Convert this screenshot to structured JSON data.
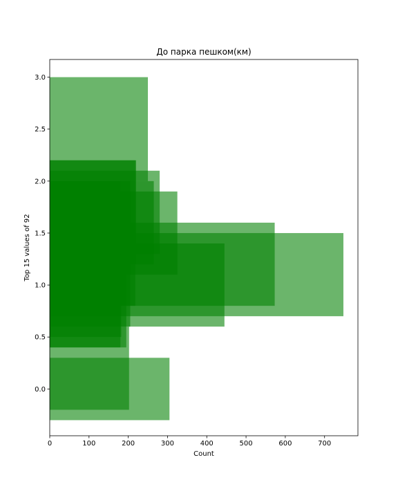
{
  "chart_data": {
    "type": "bar",
    "orientation": "horizontal",
    "title": "До парка пешком(км)",
    "xlabel": "Count",
    "ylabel": "Top 15 values of 92",
    "xlim": [
      0,
      785
    ],
    "ylim": [
      -0.45,
      3.17
    ],
    "xticks": [
      "0",
      "100",
      "200",
      "300",
      "400",
      "500",
      "600",
      "700"
    ],
    "yticks": [
      "0.0",
      "0.5",
      "1.0",
      "1.5",
      "2.0",
      "2.5",
      "3.0"
    ],
    "grid": false,
    "legend": "none",
    "bar_color": "#008000",
    "bar_opacity": 0.58,
    "bars": [
      {
        "y": 0.0,
        "height": 0.6,
        "value": 305
      },
      {
        "y": 1.1,
        "height": 0.8,
        "value": 748
      },
      {
        "y": 1.2,
        "height": 0.8,
        "value": 573
      },
      {
        "y": 1.0,
        "height": 0.8,
        "value": 445
      },
      {
        "y": 1.5,
        "height": 0.8,
        "value": 325
      },
      {
        "y": 1.7,
        "height": 0.8,
        "value": 280
      },
      {
        "y": 1.6,
        "height": 0.8,
        "value": 265
      },
      {
        "y": 2.5,
        "height": 1.0,
        "value": 250
      },
      {
        "y": 1.7,
        "height": 1.0,
        "value": 220
      },
      {
        "y": 1.5,
        "height": 1.4,
        "value": 218
      },
      {
        "y": 1.3,
        "height": 1.4,
        "value": 205
      },
      {
        "y": 1.1,
        "height": 1.4,
        "value": 195
      },
      {
        "y": 0.2,
        "height": 0.8,
        "value": 202
      },
      {
        "y": 0.9,
        "height": 0.8,
        "value": 182
      },
      {
        "y": 1.2,
        "height": 1.6,
        "value": 180
      }
    ]
  }
}
